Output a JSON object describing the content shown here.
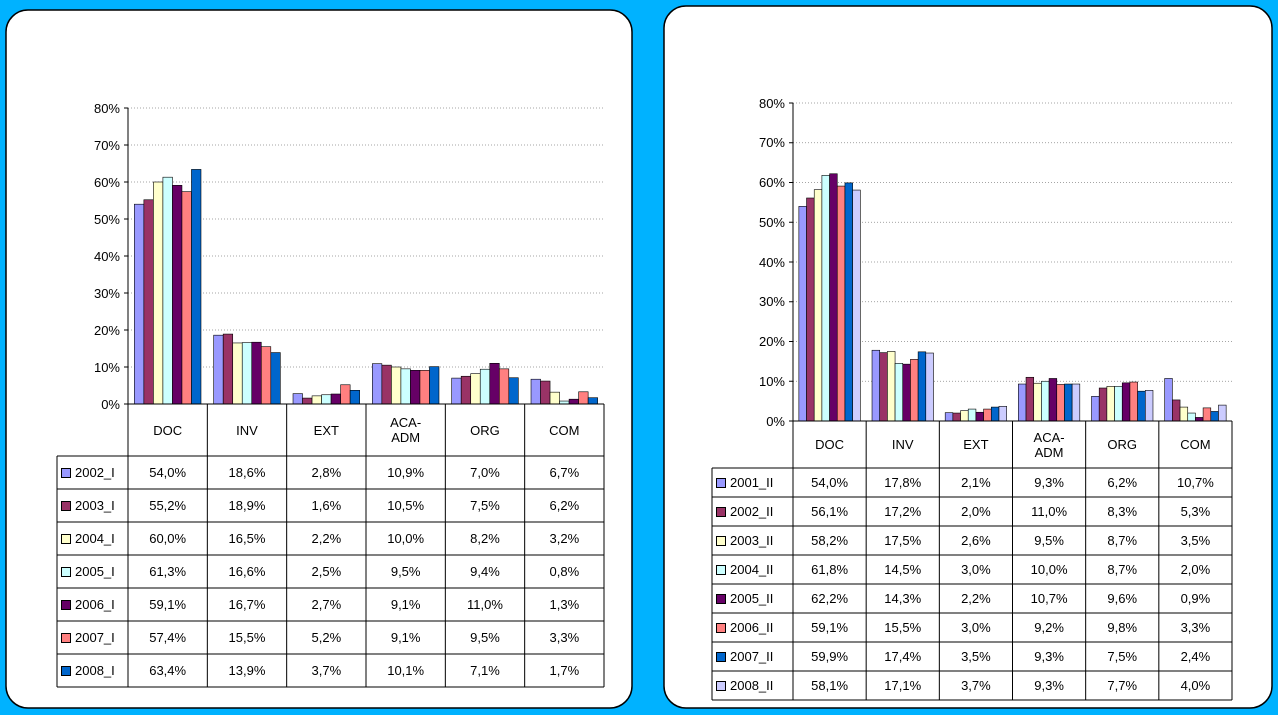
{
  "chart_data": [
    {
      "type": "bar",
      "categories": [
        "DOC",
        "INV",
        "EXT",
        "ACA-ADM",
        "ORG",
        "COM"
      ],
      "ylim": [
        0,
        80
      ],
      "yticks": [
        {
          "value": 0,
          "label": "0%"
        },
        {
          "value": 10,
          "label": "10%"
        },
        {
          "value": 20,
          "label": "20%"
        },
        {
          "value": 30,
          "label": "30%"
        },
        {
          "value": 40,
          "label": "40%"
        },
        {
          "value": 50,
          "label": "50%"
        },
        {
          "value": 60,
          "label": "60%"
        },
        {
          "value": 70,
          "label": "70%"
        },
        {
          "value": 80,
          "label": "80%"
        }
      ],
      "grid": true,
      "series": [
        {
          "name": "2002_I",
          "color": "#9999ff",
          "values": [
            54.0,
            18.6,
            2.8,
            10.9,
            7.0,
            6.7
          ],
          "value_labels": [
            "54,0%",
            "18,6%",
            "2,8%",
            "10,9%",
            "7,0%",
            "6,7%"
          ]
        },
        {
          "name": "2003_I",
          "color": "#993366",
          "values": [
            55.2,
            18.9,
            1.6,
            10.5,
            7.5,
            6.2
          ],
          "value_labels": [
            "55,2%",
            "18,9%",
            "1,6%",
            "10,5%",
            "7,5%",
            "6,2%"
          ]
        },
        {
          "name": "2004_I",
          "color": "#ffffcc",
          "values": [
            60.0,
            16.5,
            2.2,
            10.0,
            8.2,
            3.2
          ],
          "value_labels": [
            "60,0%",
            "16,5%",
            "2,2%",
            "10,0%",
            "8,2%",
            "3,2%"
          ]
        },
        {
          "name": "2005_I",
          "color": "#ccffff",
          "values": [
            61.3,
            16.6,
            2.5,
            9.5,
            9.4,
            0.8
          ],
          "value_labels": [
            "61,3%",
            "16,6%",
            "2,5%",
            "9,5%",
            "9,4%",
            "0,8%"
          ]
        },
        {
          "name": "2006_I",
          "color": "#660066",
          "values": [
            59.1,
            16.7,
            2.7,
            9.1,
            11.0,
            1.3
          ],
          "value_labels": [
            "59,1%",
            "16,7%",
            "2,7%",
            "9,1%",
            "11,0%",
            "1,3%"
          ]
        },
        {
          "name": "2007_I",
          "color": "#ff8080",
          "values": [
            57.4,
            15.5,
            5.2,
            9.1,
            9.5,
            3.3
          ],
          "value_labels": [
            "57,4%",
            "15,5%",
            "5,2%",
            "9,1%",
            "9,5%",
            "3,3%"
          ]
        },
        {
          "name": "2008_I",
          "color": "#0066cc",
          "values": [
            63.4,
            13.9,
            3.7,
            10.1,
            7.1,
            1.7
          ],
          "value_labels": [
            "63,4%",
            "13,9%",
            "3,7%",
            "10,1%",
            "7,1%",
            "1,7%"
          ]
        }
      ]
    },
    {
      "type": "bar",
      "categories": [
        "DOC",
        "INV",
        "EXT",
        "ACA-ADM",
        "ORG",
        "COM"
      ],
      "ylim": [
        0,
        80
      ],
      "yticks": [
        {
          "value": 0,
          "label": "0%"
        },
        {
          "value": 10,
          "label": "10%"
        },
        {
          "value": 20,
          "label": "20%"
        },
        {
          "value": 30,
          "label": "30%"
        },
        {
          "value": 40,
          "label": "40%"
        },
        {
          "value": 50,
          "label": "50%"
        },
        {
          "value": 60,
          "label": "60%"
        },
        {
          "value": 70,
          "label": "70%"
        },
        {
          "value": 80,
          "label": "80%"
        }
      ],
      "grid": true,
      "series": [
        {
          "name": "2001_II",
          "color": "#9999ff",
          "values": [
            54.0,
            17.8,
            2.1,
            9.3,
            6.2,
            10.7
          ],
          "value_labels": [
            "54,0%",
            "17,8%",
            "2,1%",
            "9,3%",
            "6,2%",
            "10,7%"
          ]
        },
        {
          "name": "2002_II",
          "color": "#993366",
          "values": [
            56.1,
            17.2,
            2.0,
            11.0,
            8.3,
            5.3
          ],
          "value_labels": [
            "56,1%",
            "17,2%",
            "2,0%",
            "11,0%",
            "8,3%",
            "5,3%"
          ]
        },
        {
          "name": "2003_II",
          "color": "#ffffcc",
          "values": [
            58.2,
            17.5,
            2.6,
            9.5,
            8.7,
            3.5
          ],
          "value_labels": [
            "58,2%",
            "17,5%",
            "2,6%",
            "9,5%",
            "8,7%",
            "3,5%"
          ]
        },
        {
          "name": "2004_II",
          "color": "#ccffff",
          "values": [
            61.8,
            14.5,
            3.0,
            10.0,
            8.7,
            2.0
          ],
          "value_labels": [
            "61,8%",
            "14,5%",
            "3,0%",
            "10,0%",
            "8,7%",
            "2,0%"
          ]
        },
        {
          "name": "2005_II",
          "color": "#660066",
          "values": [
            62.2,
            14.3,
            2.2,
            10.7,
            9.6,
            0.9
          ],
          "value_labels": [
            "62,2%",
            "14,3%",
            "2,2%",
            "10,7%",
            "9,6%",
            "0,9%"
          ]
        },
        {
          "name": "2006_II",
          "color": "#ff8080",
          "values": [
            59.1,
            15.5,
            3.0,
            9.2,
            9.8,
            3.3
          ],
          "value_labels": [
            "59,1%",
            "15,5%",
            "3,0%",
            "9,2%",
            "9,8%",
            "3,3%"
          ]
        },
        {
          "name": "2007_II",
          "color": "#0066cc",
          "values": [
            59.9,
            17.4,
            3.5,
            9.3,
            7.5,
            2.4
          ],
          "value_labels": [
            "59,9%",
            "17,4%",
            "3,5%",
            "9,3%",
            "7,5%",
            "2,4%"
          ]
        },
        {
          "name": "2008_II",
          "color": "#ccccff",
          "values": [
            58.1,
            17.1,
            3.7,
            9.3,
            7.7,
            4.0
          ],
          "value_labels": [
            "58,1%",
            "17,1%",
            "3,7%",
            "9,3%",
            "7,7%",
            "4,0%"
          ]
        }
      ]
    }
  ]
}
